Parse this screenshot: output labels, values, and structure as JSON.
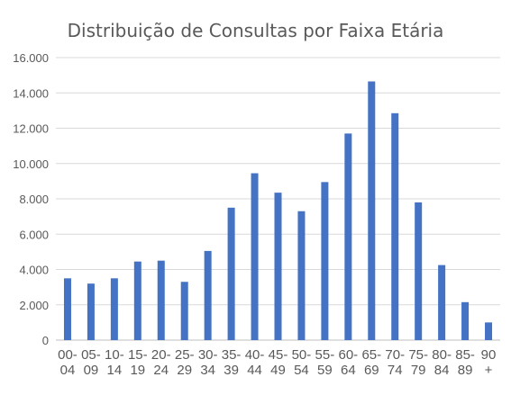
{
  "chart_data": {
    "type": "bar",
    "title": "Distribuição de Consultas por Faixa Etária",
    "xlabel": "",
    "ylabel": "",
    "ylim": [
      0,
      16000
    ],
    "ytick_step": 2000,
    "ytick_labels": [
      "0",
      "2.000",
      "4.000",
      "6.000",
      "8.000",
      "10.000",
      "12.000",
      "14.000",
      "16.000"
    ],
    "grid": true,
    "legend": "none",
    "bar_color": "#4472C4",
    "categories": [
      [
        "00-",
        "04"
      ],
      [
        "05-",
        "09"
      ],
      [
        "10-",
        "14"
      ],
      [
        "15-",
        "19"
      ],
      [
        "20-",
        "24"
      ],
      [
        "25-",
        "29"
      ],
      [
        "30-",
        "34"
      ],
      [
        "35-",
        "39"
      ],
      [
        "40-",
        "44"
      ],
      [
        "45-",
        "49"
      ],
      [
        "50-",
        "54"
      ],
      [
        "55-",
        "59"
      ],
      [
        "60-",
        "64"
      ],
      [
        "65-",
        "69"
      ],
      [
        "70-",
        "74"
      ],
      [
        "75-",
        "79"
      ],
      [
        "80-",
        "84"
      ],
      [
        "85-",
        "89"
      ],
      [
        "90",
        "+"
      ]
    ],
    "values": [
      3500,
      3200,
      3500,
      4450,
      4500,
      3300,
      5050,
      7500,
      9450,
      8350,
      7300,
      8950,
      11700,
      14650,
      12850,
      7800,
      4250,
      2150,
      1000
    ]
  }
}
